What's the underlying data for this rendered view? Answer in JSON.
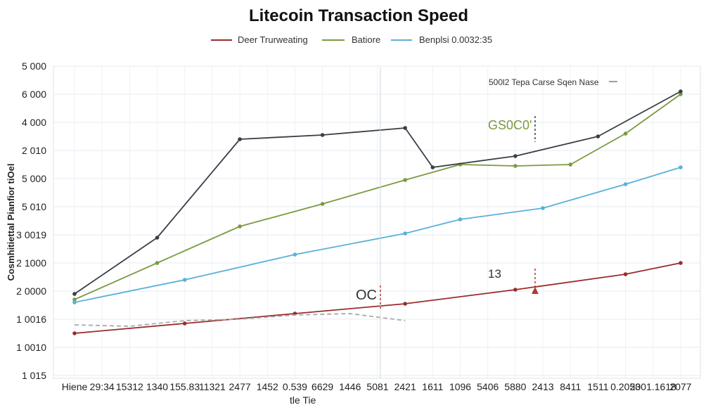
{
  "chart_data": {
    "type": "line",
    "title": "Litecoin Transaction Speed",
    "ylabel": "Cosmhitiettal Pianfior tiOel",
    "xlabel": "tle Tie",
    "grid": true,
    "legend_position": "top-center",
    "y_tick_labels": [
      "5 000",
      "6 000",
      "4 000",
      "2 010",
      "5 000",
      "5 010",
      "3 0019",
      "2 1000",
      "2 0000",
      "1 0016",
      "1 0010",
      "1 015"
    ],
    "x_tick_labels": [
      "Hiene",
      "29:34",
      "15312",
      "1340",
      "155.83",
      "11321",
      "2477",
      "1452",
      "0.539",
      "6629",
      "1446",
      "5081",
      "2421",
      "1611",
      "1096",
      "5406",
      "5880",
      "2413",
      "8411",
      "1511",
      "0.2053",
      "2001.1618",
      "2077"
    ],
    "x": [
      0,
      1,
      2,
      3,
      4,
      5,
      6,
      7,
      8,
      9,
      10,
      11,
      12,
      13,
      14,
      15,
      16,
      17,
      18,
      19,
      20,
      21,
      22
    ],
    "y_range": [
      0,
      11
    ],
    "series": [
      {
        "name": "Deer Trurweating",
        "color": "#9b2c2c",
        "style": "solid",
        "x": [
          0,
          4,
          8,
          12,
          16,
          20,
          22
        ],
        "y": [
          1.5,
          1.85,
          2.2,
          2.55,
          3.05,
          3.6,
          4.0
        ]
      },
      {
        "name": "Batiore",
        "color": "#7a9a40",
        "style": "solid",
        "x": [
          0,
          3,
          6,
          9,
          12,
          14,
          16,
          18,
          20,
          22
        ],
        "y": [
          2.7,
          4.0,
          5.3,
          6.1,
          6.95,
          7.5,
          7.45,
          7.5,
          8.6,
          10.0
        ]
      },
      {
        "name": "Benplsi 0.0032:35",
        "color": "#5ab0d8",
        "style": "solid",
        "x": [
          0,
          4,
          8,
          12,
          14,
          17,
          20,
          22
        ],
        "y": [
          2.6,
          3.4,
          4.3,
          5.05,
          5.55,
          5.95,
          6.8,
          7.4
        ]
      },
      {
        "name": "",
        "color": "#3a3f46",
        "style": "solid",
        "x": [
          0,
          3,
          6,
          9,
          12,
          13,
          16,
          19,
          22
        ],
        "y": [
          2.9,
          4.9,
          8.4,
          8.55,
          8.8,
          7.4,
          7.8,
          8.5,
          10.1
        ]
      },
      {
        "name": "",
        "color": "#a9a9a9",
        "style": "dashed",
        "x": [
          0,
          2,
          4,
          6,
          8,
          10,
          12
        ],
        "y": [
          1.8,
          1.75,
          1.95,
          2.0,
          2.15,
          2.2,
          1.95
        ]
      }
    ],
    "annotations": [
      {
        "text": "500l2 Tepa Carse Sqen Nase",
        "x": 17.5,
        "y": 10.5
      },
      {
        "text": "GS0C0'",
        "x": 16.5,
        "y": 9.0
      },
      {
        "text": "13",
        "x": 15.5,
        "y": 3.55
      },
      {
        "text": "OC",
        "x": 10.7,
        "y": 2.9
      }
    ]
  }
}
